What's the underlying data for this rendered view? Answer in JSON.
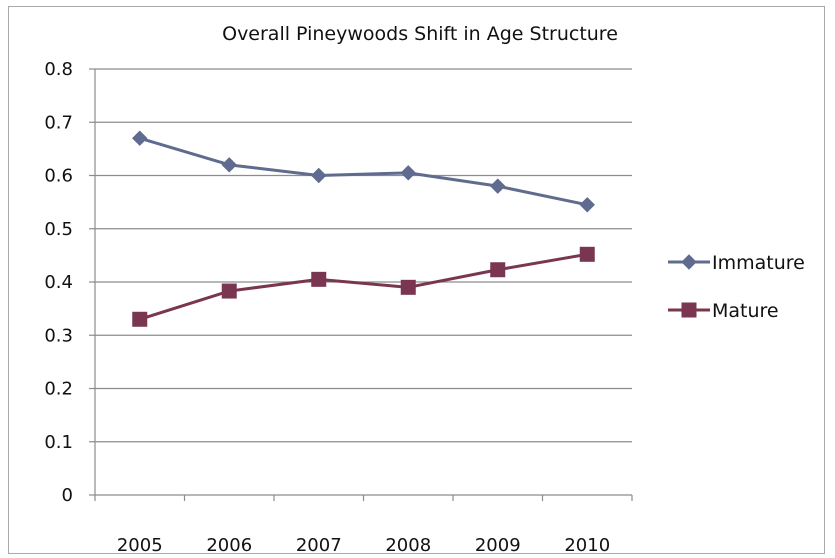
{
  "chart_data": {
    "type": "line",
    "title": "Overall Pineywoods Shift in Age Structure",
    "xlabel": "",
    "ylabel": "",
    "categories": [
      "2005",
      "2006",
      "2007",
      "2008",
      "2009",
      "2010"
    ],
    "ylim": [
      0,
      0.8
    ],
    "yticks": [
      "0",
      "0.1",
      "0.2",
      "0.3",
      "0.4",
      "0.5",
      "0.6",
      "0.7",
      "0.8"
    ],
    "grid": "horizontal",
    "legend_position": "right",
    "series": [
      {
        "name": "Immature",
        "values": [
          0.67,
          0.62,
          0.6,
          0.605,
          0.58,
          0.545
        ],
        "color": "#5f6b8f",
        "marker": "diamond"
      },
      {
        "name": "Mature",
        "values": [
          0.33,
          0.383,
          0.405,
          0.39,
          0.423,
          0.452
        ],
        "color": "#7a3550",
        "marker": "square"
      }
    ]
  }
}
